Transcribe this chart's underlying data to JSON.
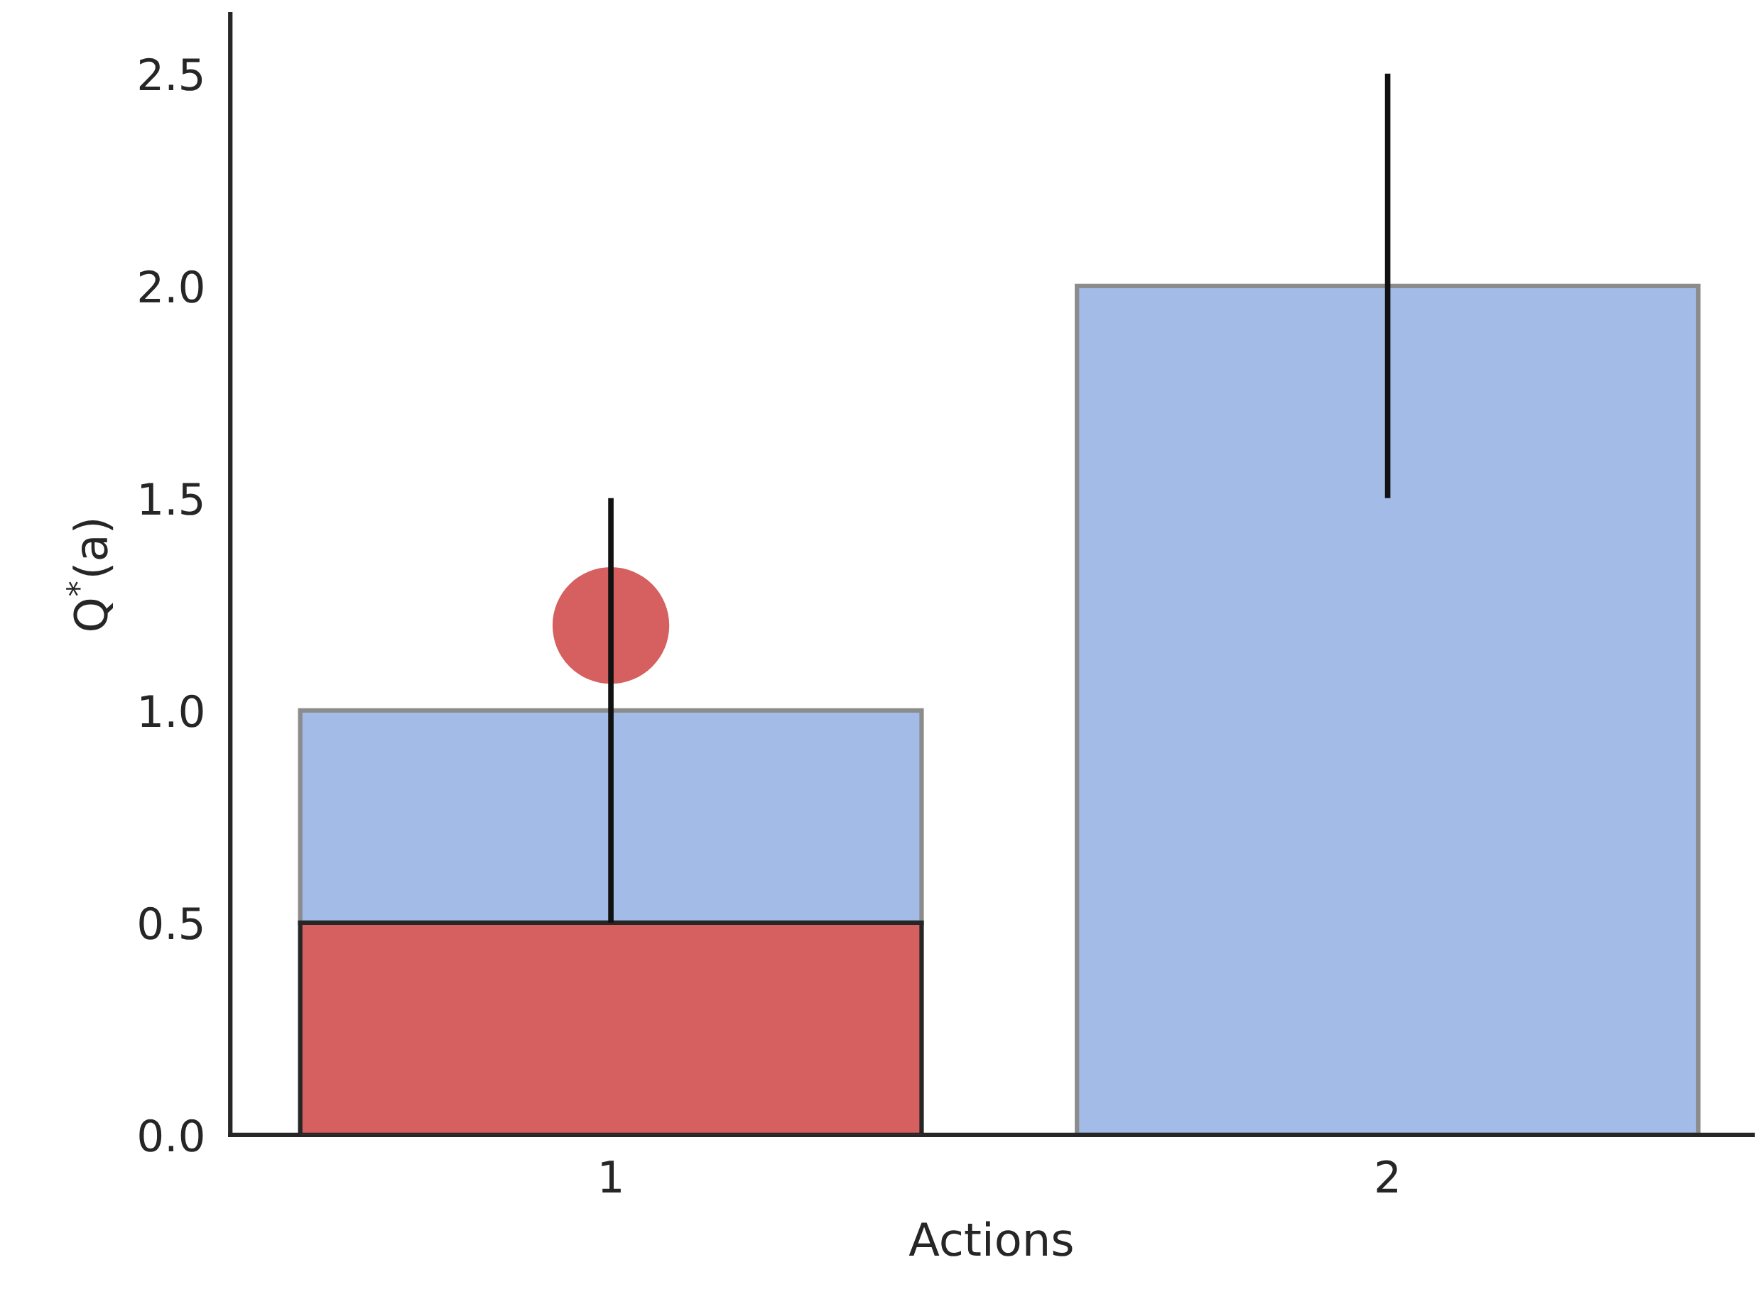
{
  "chart_data": {
    "type": "bar",
    "stacked": true,
    "xlabel": "Actions",
    "ylabel": "Q$^{*}$(a)",
    "categories": [
      "1",
      "2"
    ],
    "series": [
      {
        "color": "#d65f5f",
        "values": [
          0.5,
          null
        ]
      },
      {
        "color": "#a3bbe7",
        "values": [
          0.5,
          2.0
        ],
        "errors": [
          0.5,
          0.5
        ]
      },
      {
        "type": "scatter",
        "color": "#d65f5f",
        "values": [
          1.2,
          null
        ],
        "marker": "circle"
      }
    ],
    "ylim": [
      0,
      2.64
    ],
    "yticks": [
      {
        "value": 0,
        "label": "0.0"
      },
      0.5,
      {
        "value": 1,
        "label": "1.0"
      },
      1.5,
      {
        "value": 2,
        "label": "2.0"
      },
      2.5
    ],
    "grid": false,
    "legend": false
  }
}
